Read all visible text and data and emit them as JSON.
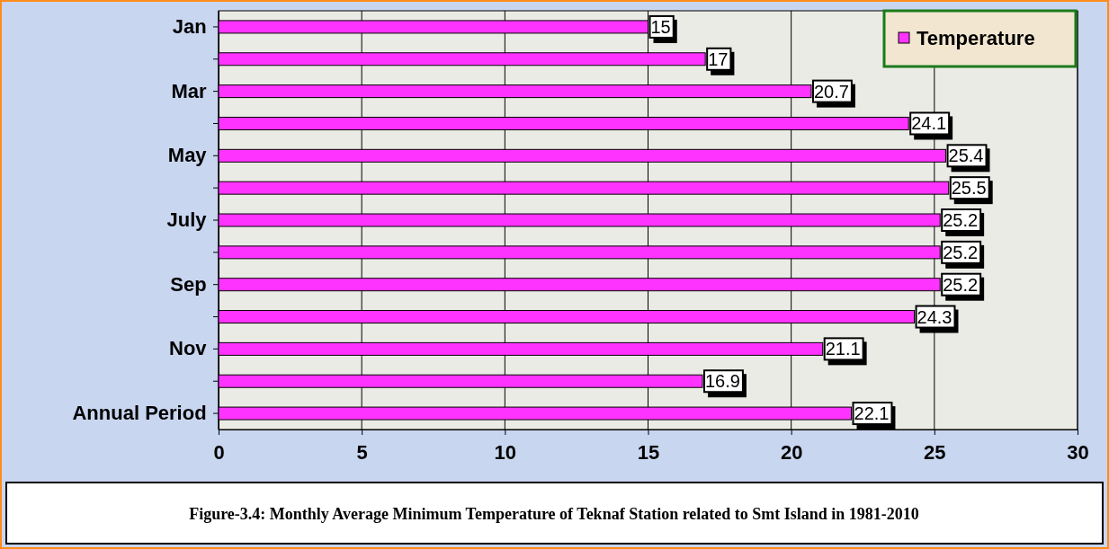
{
  "chart_data": {
    "type": "bar",
    "orientation": "horizontal",
    "categories": [
      "Jan",
      null,
      "Mar",
      null,
      "May",
      null,
      "July",
      null,
      "Sep",
      null,
      "Nov",
      null,
      "Annual Period"
    ],
    "series": [
      {
        "name": "Temperature",
        "color": "#ff33ff",
        "values": [
          15,
          17,
          20.7,
          24.1,
          25.4,
          25.5,
          25.2,
          25.2,
          25.2,
          24.3,
          21.1,
          16.9,
          22.1
        ]
      }
    ],
    "xlim": [
      0,
      30
    ],
    "xticks": [
      0,
      5,
      10,
      15,
      20,
      25,
      30
    ],
    "grid": "x",
    "legend": "top right",
    "data_labels": true,
    "annotations": [
      "Figure-3.4: Monthly Average Minimum Temperature of Teknaf Station related to Smt Island in 1981-2010"
    ]
  }
}
